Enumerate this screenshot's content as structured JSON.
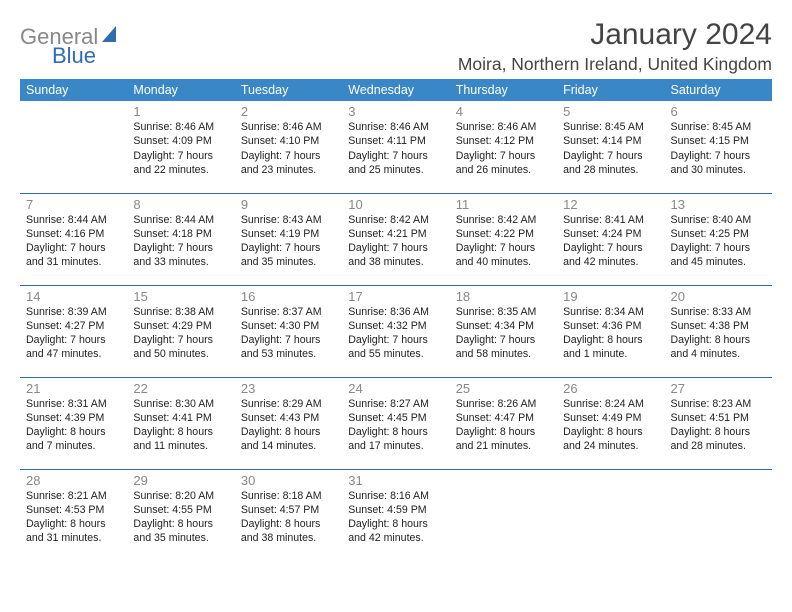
{
  "logo": {
    "gray": "General",
    "blue": "Blue"
  },
  "title": "January 2024",
  "location": "Moira, Northern Ireland, United Kingdom",
  "weekdays": [
    "Sunday",
    "Monday",
    "Tuesday",
    "Wednesday",
    "Thursday",
    "Friday",
    "Saturday"
  ],
  "calendar": {
    "header_bg": "#3a87c8",
    "header_fg": "#ffffff",
    "border_color": "#2f6db3",
    "daynum_color": "#888888",
    "info_fontsize": 10.6
  },
  "weeks": [
    [
      null,
      {
        "n": "1",
        "sr": "8:46 AM",
        "ss": "4:09 PM",
        "dl": "7 hours and 22 minutes."
      },
      {
        "n": "2",
        "sr": "8:46 AM",
        "ss": "4:10 PM",
        "dl": "7 hours and 23 minutes."
      },
      {
        "n": "3",
        "sr": "8:46 AM",
        "ss": "4:11 PM",
        "dl": "7 hours and 25 minutes."
      },
      {
        "n": "4",
        "sr": "8:46 AM",
        "ss": "4:12 PM",
        "dl": "7 hours and 26 minutes."
      },
      {
        "n": "5",
        "sr": "8:45 AM",
        "ss": "4:14 PM",
        "dl": "7 hours and 28 minutes."
      },
      {
        "n": "6",
        "sr": "8:45 AM",
        "ss": "4:15 PM",
        "dl": "7 hours and 30 minutes."
      }
    ],
    [
      {
        "n": "7",
        "sr": "8:44 AM",
        "ss": "4:16 PM",
        "dl": "7 hours and 31 minutes."
      },
      {
        "n": "8",
        "sr": "8:44 AM",
        "ss": "4:18 PM",
        "dl": "7 hours and 33 minutes."
      },
      {
        "n": "9",
        "sr": "8:43 AM",
        "ss": "4:19 PM",
        "dl": "7 hours and 35 minutes."
      },
      {
        "n": "10",
        "sr": "8:42 AM",
        "ss": "4:21 PM",
        "dl": "7 hours and 38 minutes."
      },
      {
        "n": "11",
        "sr": "8:42 AM",
        "ss": "4:22 PM",
        "dl": "7 hours and 40 minutes."
      },
      {
        "n": "12",
        "sr": "8:41 AM",
        "ss": "4:24 PM",
        "dl": "7 hours and 42 minutes."
      },
      {
        "n": "13",
        "sr": "8:40 AM",
        "ss": "4:25 PM",
        "dl": "7 hours and 45 minutes."
      }
    ],
    [
      {
        "n": "14",
        "sr": "8:39 AM",
        "ss": "4:27 PM",
        "dl": "7 hours and 47 minutes."
      },
      {
        "n": "15",
        "sr": "8:38 AM",
        "ss": "4:29 PM",
        "dl": "7 hours and 50 minutes."
      },
      {
        "n": "16",
        "sr": "8:37 AM",
        "ss": "4:30 PM",
        "dl": "7 hours and 53 minutes."
      },
      {
        "n": "17",
        "sr": "8:36 AM",
        "ss": "4:32 PM",
        "dl": "7 hours and 55 minutes."
      },
      {
        "n": "18",
        "sr": "8:35 AM",
        "ss": "4:34 PM",
        "dl": "7 hours and 58 minutes."
      },
      {
        "n": "19",
        "sr": "8:34 AM",
        "ss": "4:36 PM",
        "dl": "8 hours and 1 minute."
      },
      {
        "n": "20",
        "sr": "8:33 AM",
        "ss": "4:38 PM",
        "dl": "8 hours and 4 minutes."
      }
    ],
    [
      {
        "n": "21",
        "sr": "8:31 AM",
        "ss": "4:39 PM",
        "dl": "8 hours and 7 minutes."
      },
      {
        "n": "22",
        "sr": "8:30 AM",
        "ss": "4:41 PM",
        "dl": "8 hours and 11 minutes."
      },
      {
        "n": "23",
        "sr": "8:29 AM",
        "ss": "4:43 PM",
        "dl": "8 hours and 14 minutes."
      },
      {
        "n": "24",
        "sr": "8:27 AM",
        "ss": "4:45 PM",
        "dl": "8 hours and 17 minutes."
      },
      {
        "n": "25",
        "sr": "8:26 AM",
        "ss": "4:47 PM",
        "dl": "8 hours and 21 minutes."
      },
      {
        "n": "26",
        "sr": "8:24 AM",
        "ss": "4:49 PM",
        "dl": "8 hours and 24 minutes."
      },
      {
        "n": "27",
        "sr": "8:23 AM",
        "ss": "4:51 PM",
        "dl": "8 hours and 28 minutes."
      }
    ],
    [
      {
        "n": "28",
        "sr": "8:21 AM",
        "ss": "4:53 PM",
        "dl": "8 hours and 31 minutes."
      },
      {
        "n": "29",
        "sr": "8:20 AM",
        "ss": "4:55 PM",
        "dl": "8 hours and 35 minutes."
      },
      {
        "n": "30",
        "sr": "8:18 AM",
        "ss": "4:57 PM",
        "dl": "8 hours and 38 minutes."
      },
      {
        "n": "31",
        "sr": "8:16 AM",
        "ss": "4:59 PM",
        "dl": "8 hours and 42 minutes."
      },
      null,
      null,
      null
    ]
  ]
}
